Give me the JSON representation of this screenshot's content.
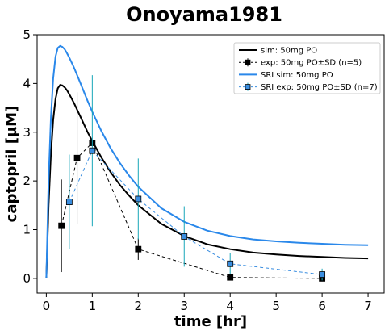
{
  "chart_data": {
    "type": "line",
    "title": "Onoyama1981",
    "xlabel": "time [hr]",
    "ylabel": "captopril [µM]",
    "xlim": [
      -0.2,
      7.35
    ],
    "ylim": [
      -0.3,
      5.0
    ],
    "xticks": [
      0,
      1,
      2,
      3,
      4,
      5,
      6,
      7
    ],
    "yticks": [
      0,
      1,
      2,
      3,
      4,
      5
    ],
    "grid": false,
    "legend_position": "top-right",
    "colors": {
      "black": "#000000",
      "blue": "#2a88ea",
      "blue_marker": "#3a8ee0",
      "blue_err": "#17a6b8"
    },
    "series": [
      {
        "name": "sim: 50mg PO",
        "kind": "line",
        "color": "#000000",
        "x": [
          0,
          0.05,
          0.1,
          0.15,
          0.2,
          0.25,
          0.3,
          0.35,
          0.4,
          0.45,
          0.5,
          0.6,
          0.7,
          0.8,
          0.9,
          1.0,
          1.2,
          1.4,
          1.6,
          1.8,
          2.0,
          2.5,
          3.0,
          3.5,
          4.0,
          4.5,
          5.0,
          5.5,
          6.0,
          6.5,
          7.0
        ],
        "y": [
          0,
          1.5,
          2.55,
          3.25,
          3.68,
          3.9,
          3.97,
          3.96,
          3.92,
          3.86,
          3.78,
          3.6,
          3.4,
          3.2,
          3.0,
          2.82,
          2.48,
          2.18,
          1.92,
          1.7,
          1.5,
          1.12,
          0.87,
          0.7,
          0.6,
          0.53,
          0.49,
          0.46,
          0.44,
          0.42,
          0.41
        ]
      },
      {
        "name": "exp: 50mg PO±SD (n=5)",
        "kind": "errorbar",
        "color": "#000000",
        "x": [
          0.33,
          0.67,
          1.0,
          2.0,
          4.0,
          6.0
        ],
        "y": [
          1.08,
          2.47,
          2.78,
          0.6,
          0.02,
          0.0
        ],
        "err": [
          0.95,
          1.35,
          0.0,
          0.22,
          0.05,
          0.03
        ]
      },
      {
        "name": "SRI sim: 50mg PO",
        "kind": "line",
        "color": "#2a88ea",
        "x": [
          0,
          0.05,
          0.1,
          0.15,
          0.2,
          0.25,
          0.3,
          0.35,
          0.4,
          0.45,
          0.5,
          0.6,
          0.7,
          0.8,
          0.9,
          1.0,
          1.2,
          1.4,
          1.6,
          1.8,
          2.0,
          2.5,
          3.0,
          3.5,
          4.0,
          4.5,
          5.0,
          5.5,
          6.0,
          6.5,
          7.0
        ],
        "y": [
          0,
          2.0,
          3.3,
          4.1,
          4.55,
          4.73,
          4.77,
          4.75,
          4.7,
          4.62,
          4.53,
          4.33,
          4.1,
          3.87,
          3.64,
          3.42,
          3.02,
          2.67,
          2.37,
          2.11,
          1.88,
          1.44,
          1.16,
          0.98,
          0.87,
          0.8,
          0.76,
          0.73,
          0.71,
          0.69,
          0.68
        ]
      },
      {
        "name": "SRI exp: 50mg PO±SD (n=7)",
        "kind": "errorbar",
        "color": "#3a8ee0",
        "err_color": "#17a6b8",
        "x": [
          0.5,
          1.0,
          2.0,
          3.0,
          4.0,
          6.0
        ],
        "y": [
          1.57,
          2.62,
          1.63,
          0.86,
          0.3,
          0.08
        ],
        "err": [
          0.97,
          1.55,
          0.83,
          0.62,
          0.22,
          0.12
        ]
      }
    ]
  }
}
